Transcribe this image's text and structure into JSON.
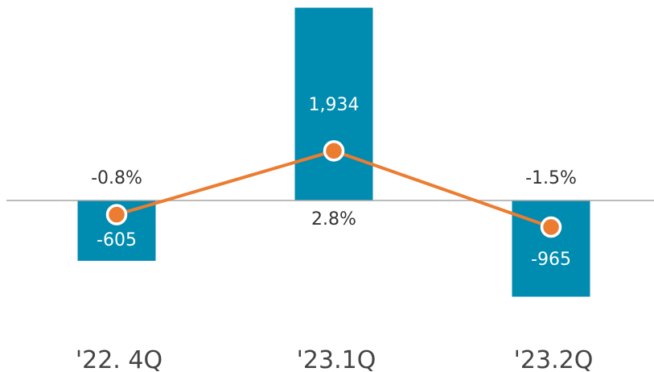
{
  "chart_data": {
    "type": "bar",
    "categories": [
      "'22. 4Q",
      "'23.1Q",
      "'23.2Q"
    ],
    "bar_values": [
      -605,
      1934,
      -965
    ],
    "bar_labels": [
      "-605",
      "1,934",
      "-965"
    ],
    "line_values": [
      -0.8,
      2.8,
      -1.5
    ],
    "line_labels": [
      "-0.8%",
      "2.8%",
      "-1.5%"
    ],
    "colors": {
      "bar": "#008bb0",
      "line": "#ec7c30",
      "axis": "#a6a6a6"
    }
  }
}
